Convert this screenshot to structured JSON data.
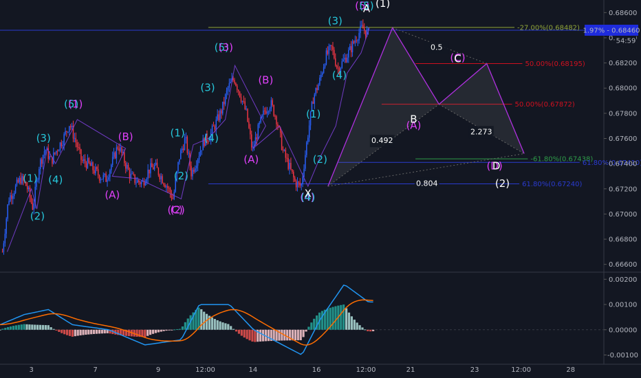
{
  "chart_data": [
    {
      "type": "candlestick",
      "title": "",
      "ylim": [
        0.6656,
        0.687
      ],
      "y_ticks": [
        "0.68600",
        "0.68400",
        "0.68200",
        "0.68000",
        "0.67800",
        "0.67600",
        "0.67400",
        "0.67200",
        "0.67000",
        "0.66800",
        "0.66600"
      ],
      "x_ticks": [
        "3",
        "7",
        "9",
        "12:00",
        "14",
        "16",
        "12:00",
        "21",
        "23",
        "12:00",
        "28"
      ],
      "last_price_label": "1.97% - 0.68460",
      "countdown_label": "54:59",
      "hidden_price_label": "0.68460",
      "price_path": [
        0.667,
        0.6712,
        0.672,
        0.6728,
        0.6722,
        0.6705,
        0.6738,
        0.6752,
        0.6742,
        0.6752,
        0.676,
        0.6772,
        0.6758,
        0.6742,
        0.674,
        0.6735,
        0.673,
        0.6728,
        0.6741,
        0.6755,
        0.6742,
        0.673,
        0.6726,
        0.6725,
        0.6735,
        0.6738,
        0.673,
        0.6722,
        0.6712,
        0.6745,
        0.676,
        0.6732,
        0.6745,
        0.6758,
        0.6762,
        0.6772,
        0.6783,
        0.68,
        0.6808,
        0.6795,
        0.678,
        0.675,
        0.6768,
        0.6782,
        0.6788,
        0.6775,
        0.675,
        0.6738,
        0.6725,
        0.6722,
        0.676,
        0.6793,
        0.6805,
        0.6825,
        0.6832,
        0.6815,
        0.6822,
        0.683,
        0.684,
        0.6848,
        0.6843
      ],
      "fib_levels": [
        {
          "label": "-27.00%(0.68482)",
          "value": 0.68482,
          "color": "#8fa43a"
        },
        {
          "label": "50.00%(0.68195)",
          "value": 0.68195,
          "color": "#d0101f"
        },
        {
          "label": "50.00%(0.67872)",
          "value": 0.67872,
          "color": "#d0101f"
        },
        {
          "label": "-61.80%(0.67438)",
          "value": 0.67438,
          "color": "#2e9c4a"
        },
        {
          "label": "61.80%(0.67410)",
          "value": 0.6741,
          "color": "#2a3bd0"
        },
        {
          "label": "61.80%(0.67240)",
          "value": 0.6724,
          "color": "#2a3bd0"
        }
      ],
      "blue_hline": 0.68476,
      "pattern_ratios": [
        "0.5",
        "2.273",
        "0.492",
        "0.804"
      ],
      "wave_labels": [
        {
          "text": "(1)",
          "color": "#26c6da",
          "t": 0.05,
          "v": 0.6728
        },
        {
          "text": "(2)",
          "color": "#26c6da",
          "t": 0.062,
          "v": 0.6698
        },
        {
          "text": "(3)",
          "color": "#26c6da",
          "t": 0.072,
          "v": 0.676
        },
        {
          "text": "(4)",
          "color": "#26c6da",
          "t": 0.092,
          "v": 0.6727
        },
        {
          "text": "(5)",
          "color": "#26c6da",
          "t": 0.118,
          "v": 0.6787
        },
        {
          "text": "(1)",
          "color": "#e040fb",
          "t": 0.125,
          "v": 0.6787
        },
        {
          "text": "(B)",
          "color": "#e040fb",
          "t": 0.208,
          "v": 0.6761
        },
        {
          "text": "(A)",
          "color": "#e040fb",
          "t": 0.186,
          "v": 0.6715
        },
        {
          "text": "(1)",
          "color": "#26c6da",
          "t": 0.294,
          "v": 0.6764
        },
        {
          "text": "(2)",
          "color": "#26c6da",
          "t": 0.3,
          "v": 0.673
        },
        {
          "text": "(C)",
          "color": "#e040fb",
          "t": 0.29,
          "v": 0.6703
        },
        {
          "text": "(2)",
          "color": "#e040fb",
          "t": 0.294,
          "v": 0.6703
        },
        {
          "text": "(3)",
          "color": "#26c6da",
          "t": 0.344,
          "v": 0.68
        },
        {
          "text": "(4)",
          "color": "#26c6da",
          "t": 0.35,
          "v": 0.676
        },
        {
          "text": "(5)",
          "color": "#26c6da",
          "t": 0.367,
          "v": 0.6832
        },
        {
          "text": "(3)",
          "color": "#e040fb",
          "t": 0.374,
          "v": 0.6832
        },
        {
          "text": "(B)",
          "color": "#e040fb",
          "t": 0.44,
          "v": 0.6806
        },
        {
          "text": "(A)",
          "color": "#e040fb",
          "t": 0.416,
          "v": 0.6743
        },
        {
          "text": "(1)",
          "color": "#26c6da",
          "t": 0.519,
          "v": 0.6779
        },
        {
          "text": "(2)",
          "color": "#26c6da",
          "t": 0.53,
          "v": 0.6743
        },
        {
          "text": "(4)",
          "color": "#e040fb",
          "t": 0.509,
          "v": 0.6713
        },
        {
          "text": "(4)",
          "color": "#26c6da",
          "t": 0.51,
          "v": 0.6713
        },
        {
          "text": "X",
          "color": "#ffffff",
          "t": 0.51,
          "v": 0.6716
        },
        {
          "text": "(3)",
          "color": "#26c6da",
          "t": 0.555,
          "v": 0.6853
        },
        {
          "text": "(4)",
          "color": "#26c6da",
          "t": 0.562,
          "v": 0.681
        },
        {
          "text": "(5)",
          "color": "#e040fb",
          "t": 0.6,
          "v": 0.6865
        },
        {
          "text": "(5)",
          "color": "#26c6da",
          "t": 0.607,
          "v": 0.6865
        },
        {
          "text": "A",
          "color": "#ffffff",
          "t": 0.607,
          "v": 0.6863
        },
        {
          "text": "(1)",
          "color": "#ffffff",
          "t": 0.634,
          "v": 0.6867
        },
        {
          "text": "(A)",
          "color": "#e040fb",
          "t": 0.685,
          "v": 0.677
        },
        {
          "text": "B",
          "color": "#ffffff",
          "t": 0.685,
          "v": 0.6775
        },
        {
          "text": "(C)",
          "color": "#e040fb",
          "t": 0.758,
          "v": 0.6824
        },
        {
          "text": "C",
          "color": "#ffffff",
          "t": 0.758,
          "v": 0.6823
        },
        {
          "text": "(D)",
          "color": "#e040fb",
          "t": 0.819,
          "v": 0.6738
        },
        {
          "text": "D",
          "color": "#ffffff",
          "t": 0.822,
          "v": 0.6738
        },
        {
          "text": "(2)",
          "color": "#ffffff",
          "t": 0.832,
          "v": 0.6724
        }
      ]
    },
    {
      "type": "macd",
      "ylim": [
        -0.00115,
        0.0022
      ],
      "y_ticks": [
        "0.00200",
        "0.00100",
        "0.00000",
        "-0.00100"
      ]
    }
  ]
}
